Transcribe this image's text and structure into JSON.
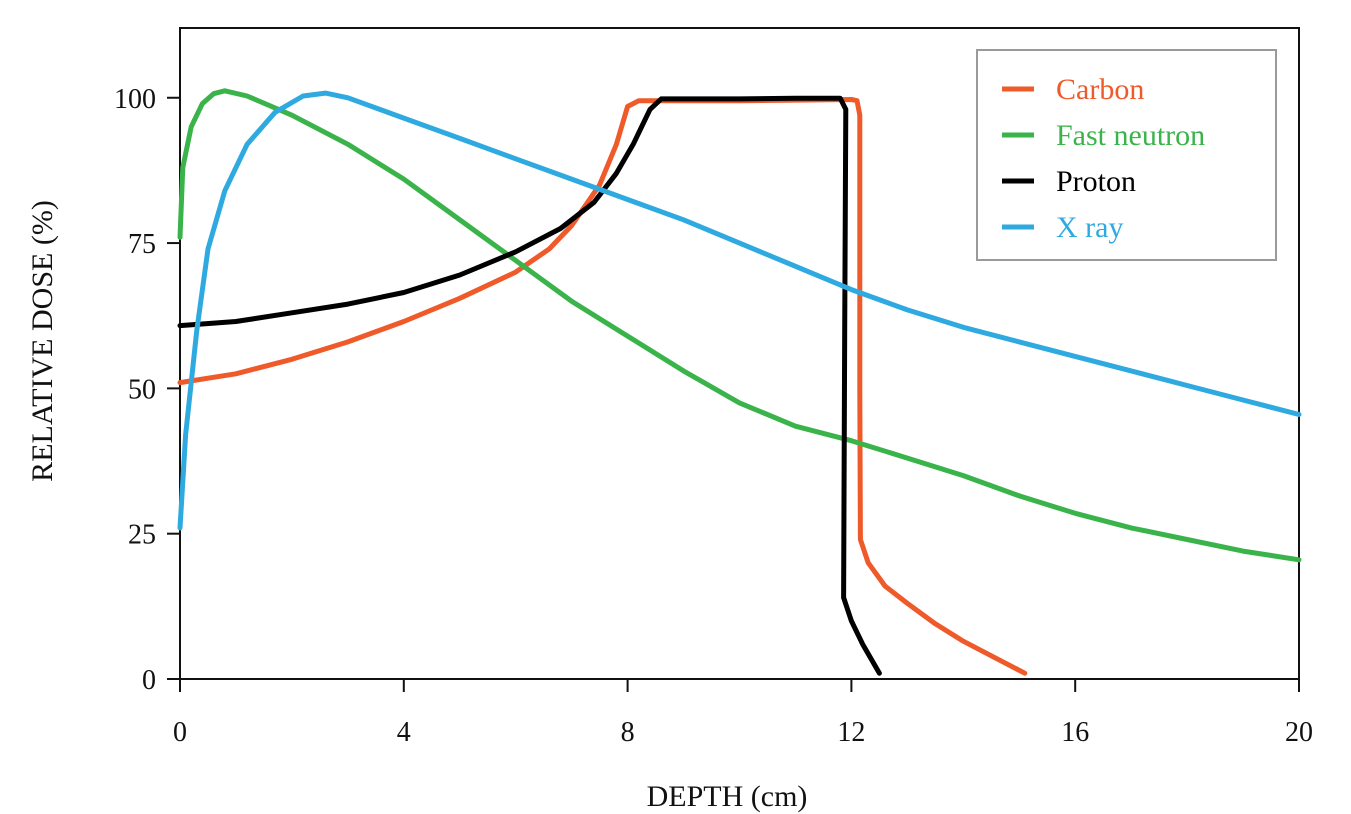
{
  "chart_data": {
    "type": "line",
    "title": "",
    "xlabel": "DEPTH (cm)",
    "ylabel": "RELATIVE DOSE (%)",
    "xlim": [
      0,
      20
    ],
    "ylim": [
      0,
      112
    ],
    "xticks": [
      0,
      4,
      8,
      12,
      16,
      20
    ],
    "yticks": [
      0,
      25,
      50,
      75,
      100
    ],
    "x_tick_labels": [
      "0",
      "4",
      "8",
      "12",
      "16",
      "20"
    ],
    "y_tick_labels": [
      "0",
      "25",
      "50",
      "75",
      "100"
    ],
    "grid": false,
    "legend_position": "top-right",
    "series": [
      {
        "name": "Carbon",
        "color": "#ef5a2a",
        "points": [
          [
            0,
            51
          ],
          [
            1,
            52.5
          ],
          [
            2,
            55
          ],
          [
            3,
            58
          ],
          [
            4,
            61.5
          ],
          [
            5,
            65.5
          ],
          [
            6,
            70
          ],
          [
            6.6,
            74
          ],
          [
            7,
            78
          ],
          [
            7.5,
            85
          ],
          [
            7.8,
            92
          ],
          [
            8.0,
            98.5
          ],
          [
            8.2,
            99.5
          ],
          [
            10,
            99.5
          ],
          [
            11,
            99.6
          ],
          [
            12,
            99.7
          ],
          [
            12.1,
            99.5
          ],
          [
            12.15,
            97
          ],
          [
            12.15,
            50
          ],
          [
            12.16,
            24
          ],
          [
            12.3,
            20
          ],
          [
            12.6,
            16
          ],
          [
            13,
            13
          ],
          [
            13.5,
            9.5
          ],
          [
            14,
            6.5
          ],
          [
            14.5,
            4
          ],
          [
            15.1,
            1
          ]
        ]
      },
      {
        "name": "Fast neutron",
        "color": "#3ab44a",
        "points": [
          [
            0,
            76
          ],
          [
            0.05,
            88
          ],
          [
            0.2,
            95
          ],
          [
            0.4,
            99
          ],
          [
            0.6,
            100.7
          ],
          [
            0.8,
            101.2
          ],
          [
            1.2,
            100.3
          ],
          [
            2,
            97
          ],
          [
            3,
            92
          ],
          [
            4,
            86
          ],
          [
            5,
            79
          ],
          [
            6,
            72
          ],
          [
            7,
            65
          ],
          [
            8,
            59
          ],
          [
            9,
            53
          ],
          [
            10,
            47.5
          ],
          [
            11,
            43.5
          ],
          [
            12,
            41
          ],
          [
            13,
            38
          ],
          [
            14,
            35
          ],
          [
            15,
            31.5
          ],
          [
            16,
            28.5
          ],
          [
            17,
            26
          ],
          [
            18,
            24
          ],
          [
            19,
            22
          ],
          [
            20,
            20.5
          ]
        ]
      },
      {
        "name": "Proton",
        "color": "#000000",
        "points": [
          [
            0,
            60.8
          ],
          [
            1,
            61.5
          ],
          [
            2,
            63
          ],
          [
            3,
            64.5
          ],
          [
            4,
            66.5
          ],
          [
            5,
            69.5
          ],
          [
            6,
            73.5
          ],
          [
            6.8,
            77.5
          ],
          [
            7.4,
            82
          ],
          [
            7.8,
            87
          ],
          [
            8.1,
            92
          ],
          [
            8.4,
            98
          ],
          [
            8.6,
            99.8
          ],
          [
            10,
            99.8
          ],
          [
            11,
            99.9
          ],
          [
            11.8,
            99.9
          ],
          [
            11.9,
            98
          ],
          [
            11.88,
            60
          ],
          [
            11.86,
            14
          ],
          [
            12.0,
            10
          ],
          [
            12.2,
            6
          ],
          [
            12.5,
            1
          ]
        ]
      },
      {
        "name": "X ray",
        "color": "#2eaae1",
        "points": [
          [
            0,
            26
          ],
          [
            0.1,
            42
          ],
          [
            0.3,
            60
          ],
          [
            0.5,
            74
          ],
          [
            0.8,
            84
          ],
          [
            1.2,
            92
          ],
          [
            1.7,
            97.5
          ],
          [
            2.2,
            100.3
          ],
          [
            2.6,
            100.8
          ],
          [
            3,
            100
          ],
          [
            4,
            96.5
          ],
          [
            5,
            93
          ],
          [
            6,
            89.5
          ],
          [
            7,
            86
          ],
          [
            8,
            82.5
          ],
          [
            9,
            79
          ],
          [
            10,
            75
          ],
          [
            11,
            71
          ],
          [
            12,
            67
          ],
          [
            13,
            63.5
          ],
          [
            14,
            60.5
          ],
          [
            15,
            58
          ],
          [
            16,
            55.5
          ],
          [
            17,
            53
          ],
          [
            18,
            50.5
          ],
          [
            19,
            48
          ],
          [
            20,
            45.5
          ]
        ]
      }
    ]
  }
}
